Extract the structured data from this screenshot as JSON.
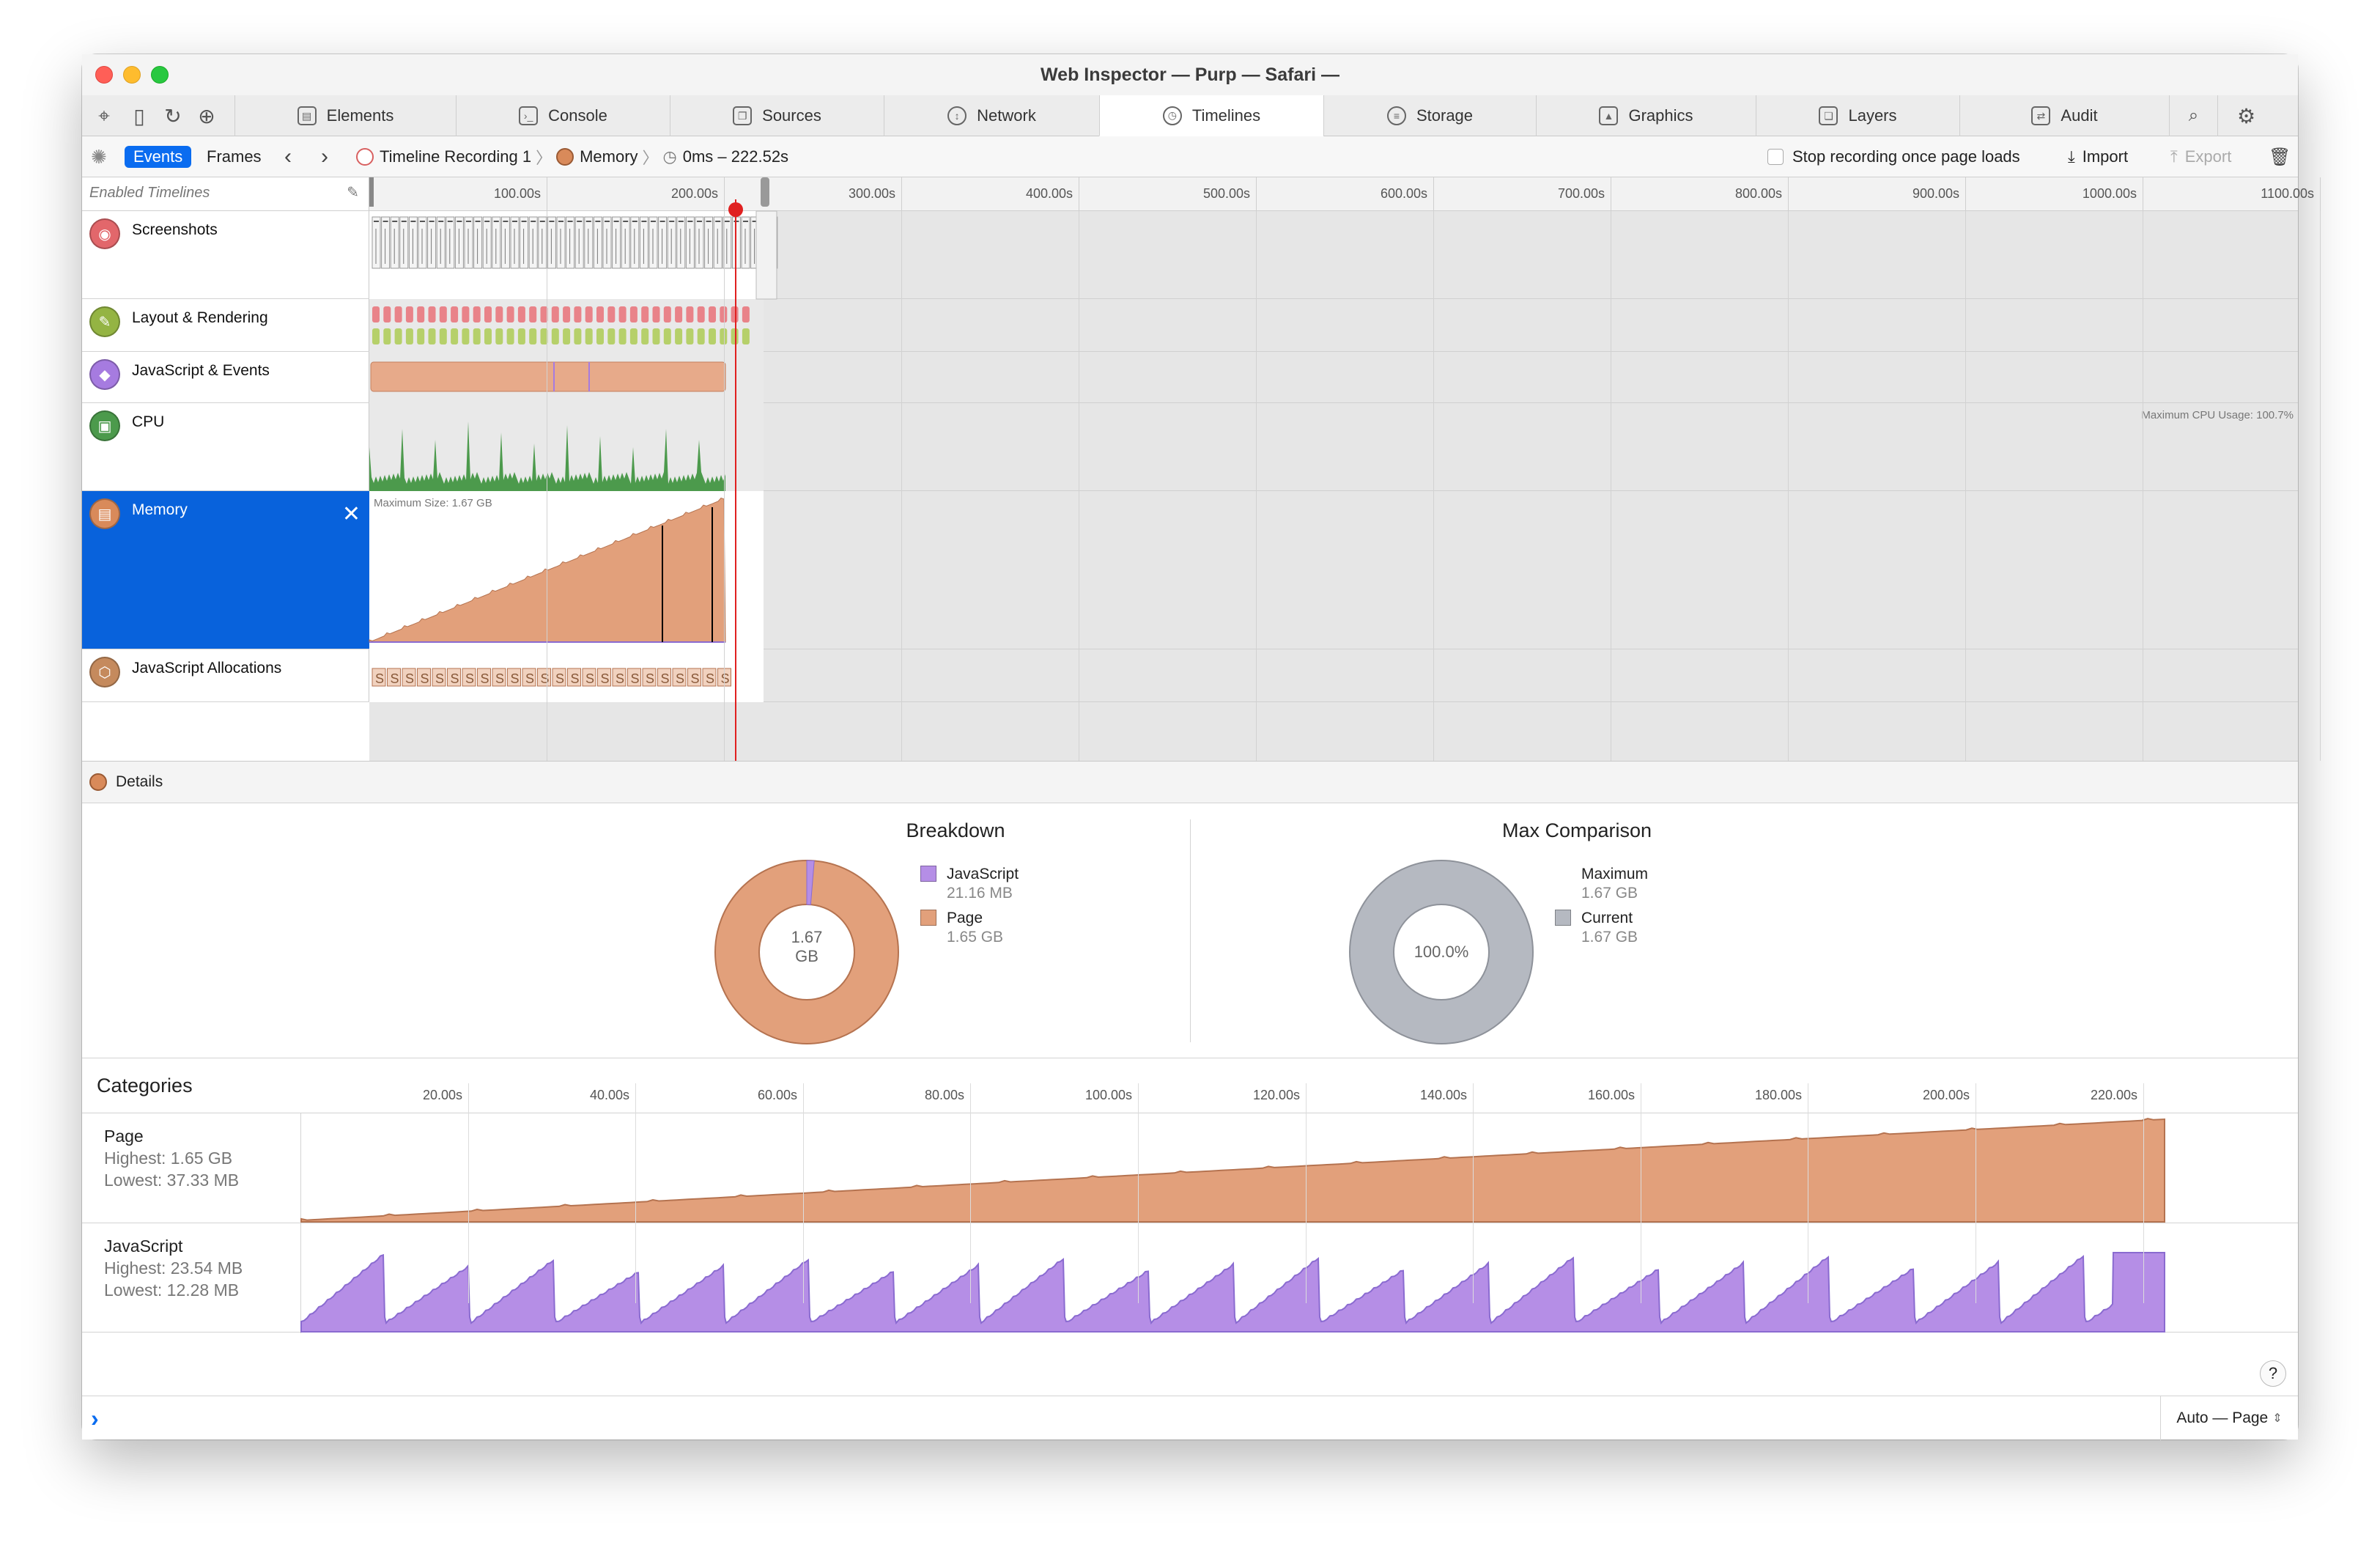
{
  "window": {
    "title": "Web Inspector — Purp — Safari —"
  },
  "toolbar_icons": [
    "crosshair-icon",
    "device-icon",
    "reload-icon",
    "download-icon"
  ],
  "tabs": [
    {
      "label": "Elements",
      "icon": "elements-icon"
    },
    {
      "label": "Console",
      "icon": "console-icon"
    },
    {
      "label": "Sources",
      "icon": "sources-icon"
    },
    {
      "label": "Network",
      "icon": "network-icon"
    },
    {
      "label": "Timelines",
      "icon": "clock-icon",
      "active": true
    },
    {
      "label": "Storage",
      "icon": "database-icon"
    },
    {
      "label": "Graphics",
      "icon": "image-icon"
    },
    {
      "label": "Layers",
      "icon": "layers-icon"
    },
    {
      "label": "Audit",
      "icon": "audit-icon"
    }
  ],
  "navbar": {
    "events_label": "Events",
    "frames_label": "Frames",
    "recording_label": "Timeline Recording 1",
    "memory_label": "Memory",
    "range_label": "0ms – 222.52s",
    "stop_recording_label": "Stop recording once page loads",
    "import_label": "Import",
    "export_label": "Export"
  },
  "overview": {
    "header_label": "Enabled Timelines",
    "ruler_ticks": [
      "100.00s",
      "200.00s",
      "300.00s",
      "400.00s",
      "500.00s",
      "600.00s",
      "700.00s",
      "800.00s",
      "900.00s",
      "1000.00s",
      "1100.00s"
    ],
    "timelines": [
      {
        "label": "Screenshots",
        "icon": "camera-icon",
        "color": "#e2676b"
      },
      {
        "label": "Layout & Rendering",
        "icon": "paintbrush-icon",
        "color": "#94b443"
      },
      {
        "label": "JavaScript & Events",
        "icon": "script-icon",
        "color": "#a67be0"
      },
      {
        "label": "CPU",
        "icon": "cpu-icon",
        "color": "#4c9a4c"
      },
      {
        "label": "Memory",
        "icon": "memory-icon",
        "color": "#d98a5a"
      },
      {
        "label": "JavaScript Allocations",
        "icon": "cube-icon",
        "color": "#c58a5d"
      }
    ],
    "cpu_max_label": "Maximum CPU Usage: 100.7%",
    "memory_max_label": "Maximum Size: 1.67 GB"
  },
  "details": {
    "header_label": "Details",
    "breakdown": {
      "title": "Breakdown",
      "center_value": "1.67",
      "center_unit": "GB",
      "items": [
        {
          "label": "JavaScript",
          "value": "21.16 MB",
          "color": "#b58ee6"
        },
        {
          "label": "Page",
          "value": "1.65 GB",
          "color": "#e2a07b"
        }
      ]
    },
    "max_comparison": {
      "title": "Max Comparison",
      "center_value": "100.0%",
      "items": [
        {
          "label": "Maximum",
          "value": "1.67 GB",
          "color": ""
        },
        {
          "label": "Current",
          "value": "1.67 GB",
          "color": "#b5b9c1"
        }
      ]
    }
  },
  "categories": {
    "title": "Categories",
    "ruler_ticks": [
      "20.00s",
      "40.00s",
      "60.00s",
      "80.00s",
      "100.00s",
      "120.00s",
      "140.00s",
      "160.00s",
      "180.00s",
      "200.00s",
      "220.00s"
    ],
    "rows": [
      {
        "name": "Page",
        "highest": "Highest: 1.65 GB",
        "lowest": "Lowest: 37.33 MB",
        "color": "#e2a07b"
      },
      {
        "name": "JavaScript",
        "highest": "Highest: 23.54 MB",
        "lowest": "Lowest: 12.28 MB",
        "color": "#b58ee6"
      }
    ]
  },
  "bottombar": {
    "prompt": "›",
    "context_label": "Auto — Page",
    "help_label": "?"
  },
  "colors": {
    "selected": "#0862dc",
    "accent": "#0a6cf0",
    "playhead": "#e02020"
  }
}
